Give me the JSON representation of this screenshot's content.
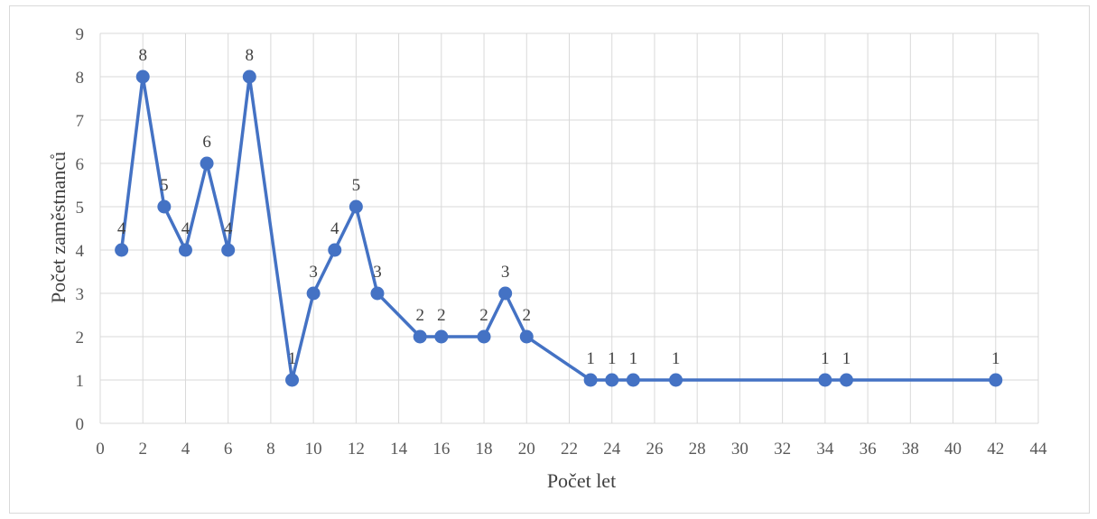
{
  "chart_data": {
    "type": "line",
    "xlabel": "Počet let",
    "ylabel": "Počet zaměstnanců",
    "xlim": [
      0,
      44
    ],
    "ylim": [
      0,
      9
    ],
    "x_ticks": [
      0,
      2,
      4,
      6,
      8,
      10,
      12,
      14,
      16,
      18,
      20,
      22,
      24,
      26,
      28,
      30,
      32,
      34,
      36,
      38,
      40,
      42,
      44
    ],
    "y_ticks": [
      0,
      1,
      2,
      3,
      4,
      5,
      6,
      7,
      8,
      9
    ],
    "grid": true,
    "series": [
      {
        "color": "#4472c4",
        "points": [
          {
            "x": 1,
            "y": 4
          },
          {
            "x": 2,
            "y": 8
          },
          {
            "x": 3,
            "y": 5
          },
          {
            "x": 4,
            "y": 4
          },
          {
            "x": 5,
            "y": 6
          },
          {
            "x": 6,
            "y": 4
          },
          {
            "x": 7,
            "y": 8
          },
          {
            "x": 9,
            "y": 1
          },
          {
            "x": 10,
            "y": 3
          },
          {
            "x": 11,
            "y": 4
          },
          {
            "x": 12,
            "y": 5
          },
          {
            "x": 13,
            "y": 3
          },
          {
            "x": 15,
            "y": 2
          },
          {
            "x": 16,
            "y": 2
          },
          {
            "x": 18,
            "y": 2
          },
          {
            "x": 19,
            "y": 3
          },
          {
            "x": 20,
            "y": 2
          },
          {
            "x": 23,
            "y": 1
          },
          {
            "x": 24,
            "y": 1
          },
          {
            "x": 25,
            "y": 1
          },
          {
            "x": 27,
            "y": 1
          },
          {
            "x": 34,
            "y": 1
          },
          {
            "x": 35,
            "y": 1
          },
          {
            "x": 42,
            "y": 1
          }
        ]
      }
    ]
  }
}
